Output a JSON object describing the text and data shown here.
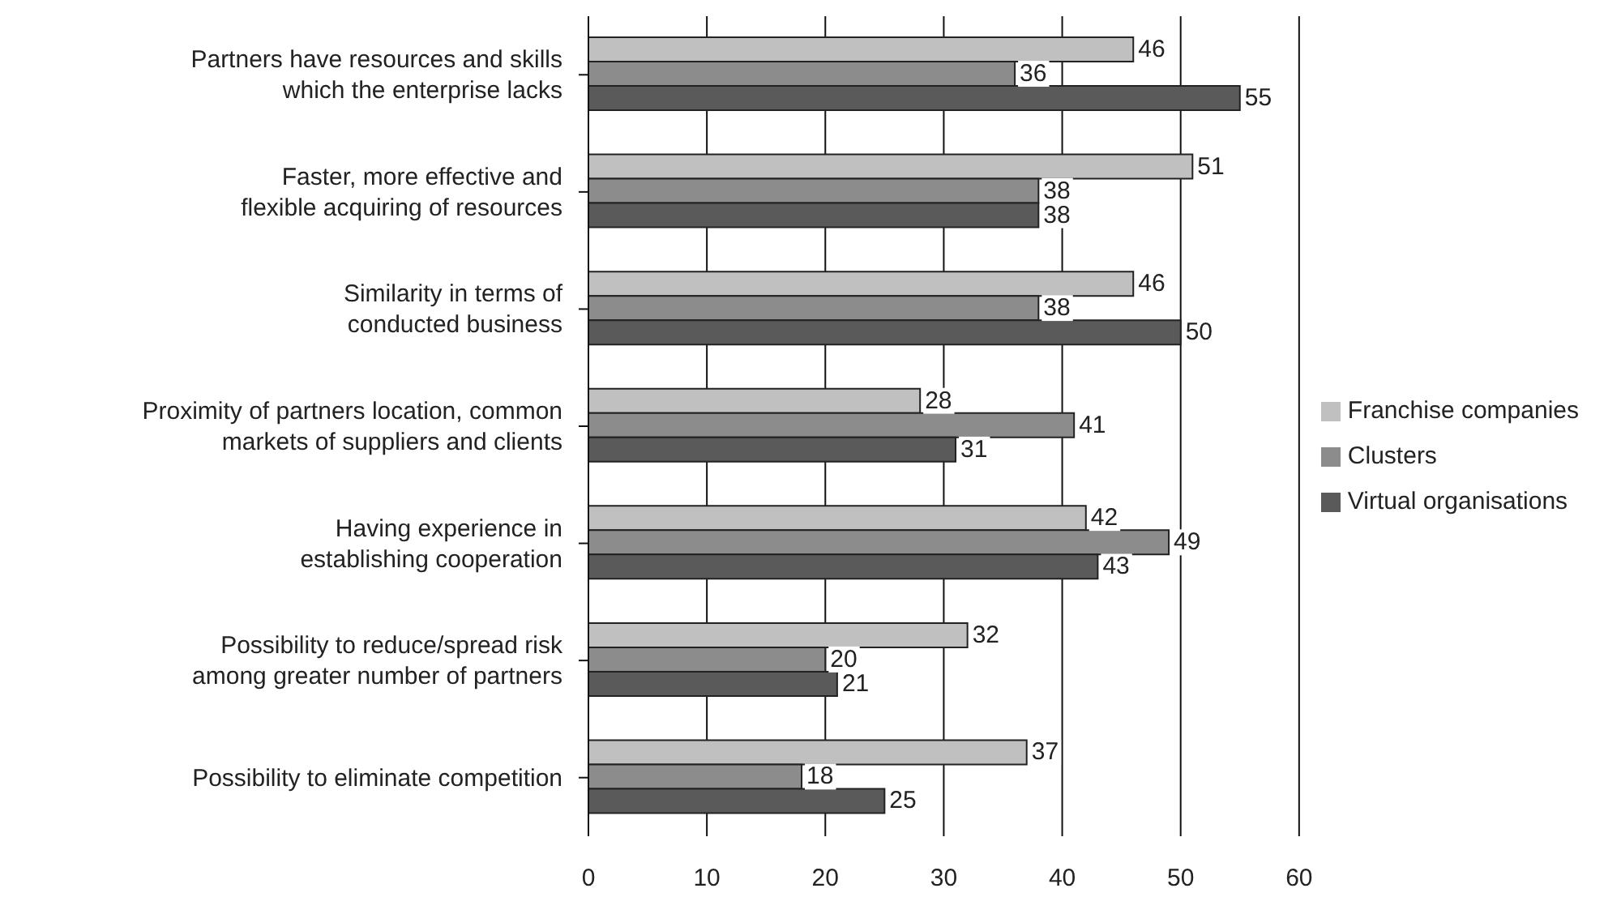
{
  "chart_data": {
    "type": "bar",
    "orientation": "horizontal",
    "categories": [
      "Partners have resources and skills\nwhich the enterprise lacks",
      "Faster, more effective and\nflexible acquiring of resources",
      "Similarity in terms of\nconducted business",
      "Proximity of partners location, common\nmarkets of suppliers and clients",
      "Having experience in\nestablishing cooperation",
      "Possibility to reduce/spread risk\namong greater number of partners",
      "Possibility to eliminate competition"
    ],
    "series": [
      {
        "name": "Franchise companies",
        "color": "#c0c0c0",
        "values": [
          46,
          51,
          46,
          28,
          42,
          32,
          37
        ]
      },
      {
        "name": "Clusters",
        "color": "#8c8c8c",
        "values": [
          36,
          38,
          38,
          41,
          49,
          20,
          18
        ]
      },
      {
        "name": "Virtual organisations",
        "color": "#5a5a5a",
        "values": [
          55,
          38,
          50,
          31,
          43,
          21,
          25
        ]
      }
    ],
    "xlim": [
      0,
      60
    ],
    "xticks": [
      0,
      10,
      20,
      30,
      40,
      50,
      60
    ],
    "grid": "x",
    "legend": "right",
    "data_labels": true
  }
}
